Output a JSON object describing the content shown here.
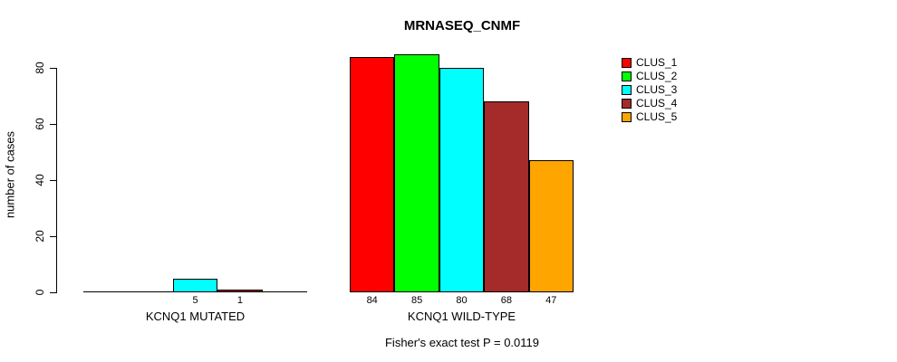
{
  "chart_data": {
    "type": "bar",
    "title": "MRNASEQ_CNMF",
    "ylabel": "number of cases",
    "ylim": [
      0,
      85
    ],
    "yticks": [
      0,
      20,
      40,
      60,
      80
    ],
    "grid": false,
    "legend_position": "right",
    "categories": [
      "KCNQ1 MUTATED",
      "KCNQ1 WILD-TYPE"
    ],
    "series": [
      {
        "name": "CLUS_1",
        "color": "#ff0000",
        "values": [
          0,
          84
        ]
      },
      {
        "name": "CLUS_2",
        "color": "#00ff00",
        "values": [
          0,
          85
        ]
      },
      {
        "name": "CLUS_3",
        "color": "#00ffff",
        "values": [
          5,
          80
        ]
      },
      {
        "name": "CLUS_4",
        "color": "#a52a2a",
        "values": [
          1,
          68
        ]
      },
      {
        "name": "CLUS_5",
        "color": "#ffa500",
        "values": [
          0,
          47
        ]
      }
    ],
    "bar_value_labels": {
      "show": true,
      "nonzero_only": true
    },
    "annotation": "Fisher's exact test P = 0.0119"
  }
}
